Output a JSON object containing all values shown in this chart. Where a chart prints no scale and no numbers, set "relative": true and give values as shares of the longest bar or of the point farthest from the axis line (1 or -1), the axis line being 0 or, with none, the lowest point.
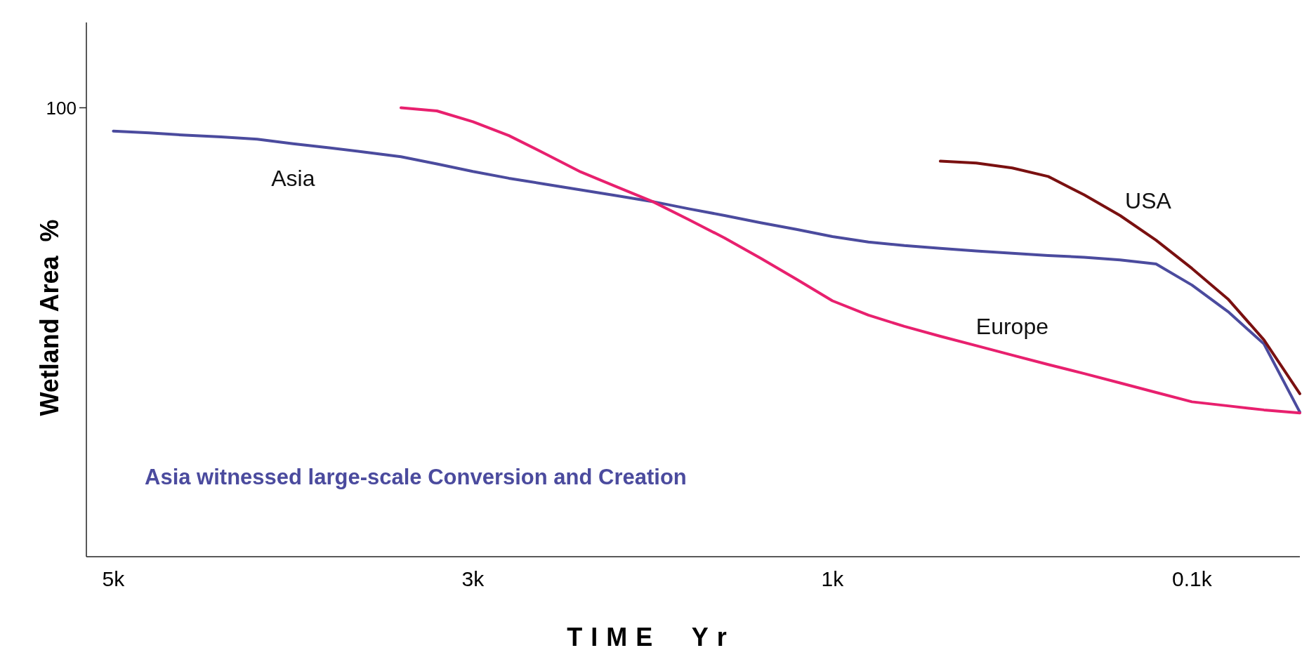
{
  "chart_data": {
    "type": "line",
    "xlabel": "TIME  Yr",
    "ylabel": "Wetland Area  %",
    "relative": true,
    "categories": [
      "5k",
      null,
      null,
      null,
      null,
      null,
      null,
      null,
      null,
      null,
      "3k",
      null,
      null,
      null,
      null,
      null,
      null,
      null,
      null,
      null,
      "1k",
      null,
      null,
      null,
      null,
      null,
      null,
      null,
      null,
      null,
      "0.1k",
      null,
      null,
      null
    ],
    "grid": false,
    "marker": "none",
    "line_style": "solid",
    "series": [
      {
        "name": "Asia",
        "color": "#4b4b9e",
        "values": [
          0.948,
          0.944,
          0.939,
          0.935,
          0.93,
          0.92,
          0.911,
          0.901,
          0.891,
          0.875,
          0.858,
          0.843,
          0.83,
          0.817,
          0.804,
          0.791,
          0.775,
          0.76,
          0.744,
          0.729,
          0.713,
          0.701,
          0.693,
          0.687,
          0.681,
          0.676,
          0.671,
          0.667,
          0.661,
          0.652,
          0.605,
          0.546,
          0.474,
          0.322
        ]
      },
      {
        "name": "Europe",
        "color": "#e8206e",
        "values": [
          null,
          null,
          null,
          null,
          null,
          null,
          null,
          null,
          1.0,
          0.993,
          0.969,
          0.938,
          0.898,
          0.857,
          0.824,
          0.791,
          0.751,
          0.71,
          0.665,
          0.618,
          0.57,
          0.538,
          0.513,
          0.491,
          0.47,
          0.449,
          0.428,
          0.408,
          0.387,
          0.366,
          0.345,
          0.336,
          0.327,
          0.32
        ]
      },
      {
        "name": "USA",
        "color": "#7a1010",
        "values": [
          null,
          null,
          null,
          null,
          null,
          null,
          null,
          null,
          null,
          null,
          null,
          null,
          null,
          null,
          null,
          null,
          null,
          null,
          null,
          null,
          null,
          null,
          null,
          0.881,
          0.877,
          0.866,
          0.847,
          0.806,
          0.76,
          0.705,
          0.642,
          0.574,
          0.483,
          0.363
        ]
      }
    ],
    "annotations": [
      "100",
      "Asia witnessed large-scale Conversion and Creation"
    ]
  }
}
